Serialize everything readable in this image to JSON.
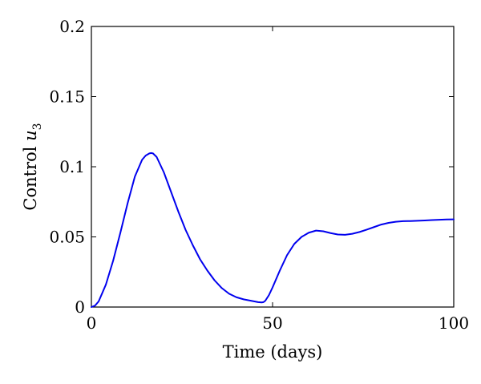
{
  "chart_data": {
    "type": "line",
    "title": "",
    "xlabel": "Time (days)",
    "ylabel_prefix": "Control ",
    "ylabel_var": "u",
    "ylabel_sub": "3",
    "xlim": [
      0,
      100
    ],
    "ylim": [
      0,
      0.2
    ],
    "xticks": [
      0,
      50,
      100
    ],
    "xtick_labels": [
      "0",
      "50",
      "100"
    ],
    "yticks": [
      0,
      0.05,
      0.1,
      0.15,
      0.2
    ],
    "ytick_labels": [
      "0",
      "0.05",
      "0.1",
      "0.15",
      "0.2"
    ],
    "grid": false,
    "legend": "none",
    "series": [
      {
        "color": "#0000ee",
        "x": [
          0,
          1,
          2,
          4,
          6,
          8,
          10,
          12,
          14,
          15,
          16,
          16.5,
          17,
          18,
          20,
          22,
          24,
          26,
          28,
          30,
          32,
          34,
          36,
          38,
          40,
          42,
          44,
          46,
          47,
          47.5,
          48,
          49,
          50,
          52,
          54,
          56,
          58,
          60,
          62,
          64,
          66,
          68,
          70,
          72,
          74,
          76,
          78,
          80,
          82,
          84,
          86,
          88,
          90,
          92,
          94,
          96,
          98,
          100
        ],
        "y": [
          0,
          0.001,
          0.004,
          0.016,
          0.033,
          0.053,
          0.074,
          0.093,
          0.105,
          0.108,
          0.1095,
          0.1098,
          0.1095,
          0.107,
          0.096,
          0.082,
          0.068,
          0.055,
          0.044,
          0.034,
          0.026,
          0.019,
          0.0135,
          0.0095,
          0.007,
          0.0055,
          0.0045,
          0.0035,
          0.0033,
          0.0035,
          0.0045,
          0.0085,
          0.014,
          0.026,
          0.037,
          0.045,
          0.05,
          0.053,
          0.0545,
          0.054,
          0.0527,
          0.0517,
          0.0515,
          0.0522,
          0.0535,
          0.0552,
          0.057,
          0.0588,
          0.06,
          0.0608,
          0.0612,
          0.0613,
          0.0615,
          0.0617,
          0.062,
          0.0622,
          0.0624,
          0.0625
        ]
      }
    ]
  }
}
